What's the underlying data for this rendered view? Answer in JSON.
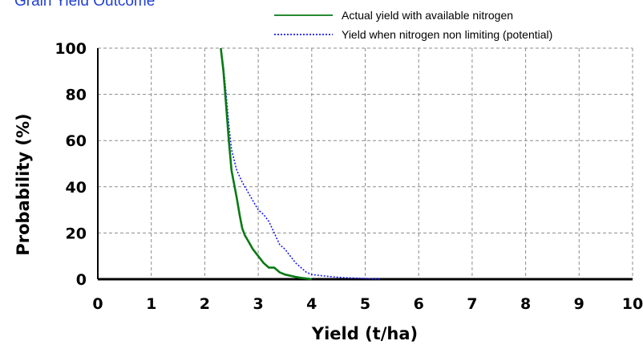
{
  "title": "Grain Yield Outcome",
  "colors": {
    "actual": "#0a7a14",
    "potential": "#1a1aff",
    "grid": "#8c8c8c",
    "title": "#1f3fd6"
  },
  "chart_data": {
    "type": "line",
    "title": "Grain Yield Outcome",
    "xlabel": "Yield (t/ha)",
    "ylabel": "Probability (%)",
    "xlim": [
      0,
      10
    ],
    "ylim": [
      0,
      100
    ],
    "xticks": [
      "0",
      "1",
      "2",
      "3",
      "4",
      "5",
      "6",
      "7",
      "8",
      "9",
      "10"
    ],
    "yticks": [
      "0",
      "20",
      "40",
      "60",
      "80",
      "100"
    ],
    "grid": true,
    "legend_position": "top-right",
    "series": [
      {
        "name": "Actual yield with available nitrogen",
        "style": "solid",
        "x": [
          2.3,
          2.35,
          2.4,
          2.45,
          2.5,
          2.55,
          2.6,
          2.65,
          2.7,
          2.75,
          2.8,
          2.85,
          2.9,
          3.0,
          3.1,
          3.2,
          3.3,
          3.4,
          3.5,
          3.6,
          3.7,
          3.8,
          3.9,
          4.0
        ],
        "y": [
          100,
          90,
          75,
          60,
          47,
          41,
          35,
          28,
          22,
          19,
          17,
          15,
          13,
          10,
          7,
          5,
          5,
          3,
          2,
          1.5,
          1,
          0.6,
          0.3,
          0
        ]
      },
      {
        "name": "Yield when nitrogen non limiting (potential)",
        "style": "dotted",
        "x": [
          2.3,
          2.35,
          2.4,
          2.45,
          2.5,
          2.6,
          2.7,
          2.8,
          2.9,
          3.0,
          3.1,
          3.2,
          3.3,
          3.4,
          3.5,
          3.6,
          3.7,
          3.8,
          3.9,
          4.0,
          4.2,
          4.4,
          4.6,
          4.8,
          5.0,
          5.2,
          5.3
        ],
        "y": [
          100,
          92,
          80,
          67,
          56,
          47,
          42,
          38,
          34,
          30,
          28,
          25,
          20,
          15,
          13,
          10,
          7,
          5,
          3,
          2,
          1.5,
          1,
          0.7,
          0.5,
          0.3,
          0.1,
          0
        ]
      }
    ]
  }
}
